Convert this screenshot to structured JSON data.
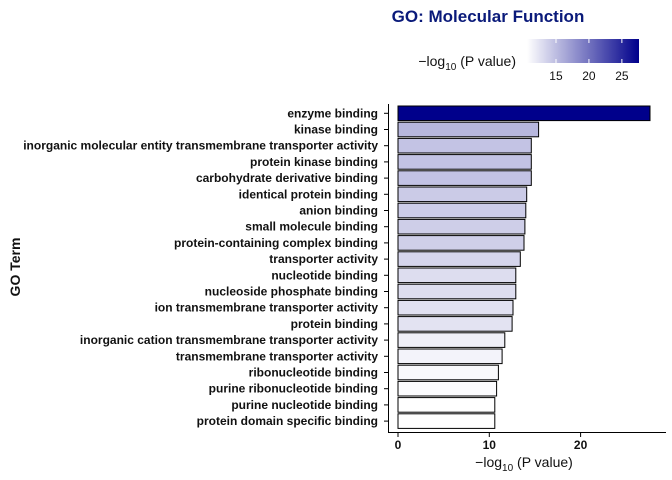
{
  "chart_data": {
    "type": "bar",
    "orientation": "horizontal",
    "title": "GO: Molecular Function",
    "xlabel_prefix": "−log",
    "xlabel_sub": "10",
    "xlabel_suffix": " (P value)",
    "ylabel": "GO Term",
    "xlim": [
      0,
      28
    ],
    "xticks": [
      0,
      10,
      20
    ],
    "categories": [
      "enzyme binding",
      "kinase binding",
      "inorganic molecular entity transmembrane transporter activity",
      "protein kinase binding",
      "carbohydrate derivative binding",
      "identical protein binding",
      "anion binding",
      "small molecule binding",
      "protein-containing complex binding",
      "transporter activity",
      "nucleotide binding",
      "nucleoside phosphate binding",
      "ion transmembrane transporter activity",
      "protein binding",
      "inorganic cation transmembrane transporter activity",
      "transmembrane transporter activity",
      "ribonucleotide binding",
      "purine ribonucleotide binding",
      "purine nucleotide binding",
      "protein domain specific binding"
    ],
    "values": [
      27.6,
      15.4,
      14.6,
      14.6,
      14.6,
      14.1,
      14.0,
      13.9,
      13.8,
      13.4,
      12.9,
      12.9,
      12.6,
      12.5,
      11.7,
      11.4,
      11.0,
      10.8,
      10.6,
      10.6
    ],
    "legend": {
      "title_prefix": "−log",
      "title_sub": "10",
      "title_suffix": " (P value)",
      "range": [
        10.6,
        27.6
      ],
      "ticks": [
        15,
        20,
        25
      ],
      "placement": "top-right"
    },
    "color_low": "#ffffff",
    "color_high": "#00008b",
    "bar_outline": "#000000",
    "grid": false
  }
}
